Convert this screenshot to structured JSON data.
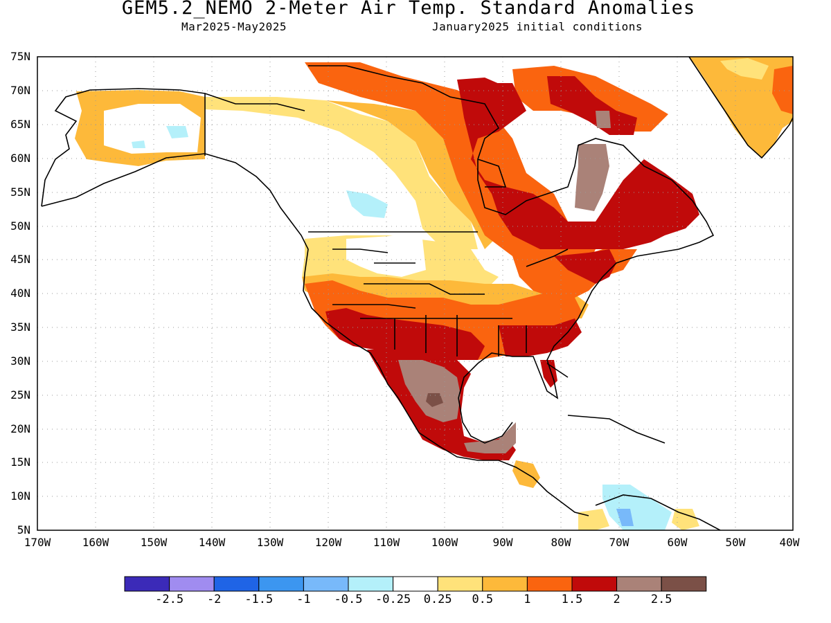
{
  "header": {
    "title": "GEM5.2_NEMO 2-Meter Air Temp. Standard Anomalies",
    "period": "Mar2025-May2025",
    "init": "January2025 initial conditions"
  },
  "axes": {
    "lat_labels": [
      "75N",
      "70N",
      "65N",
      "60N",
      "55N",
      "50N",
      "45N",
      "40N",
      "35N",
      "30N",
      "25N",
      "20N",
      "15N",
      "10N",
      "5N"
    ],
    "lon_labels": [
      "170W",
      "160W",
      "150W",
      "140W",
      "130W",
      "120W",
      "110W",
      "100W",
      "90W",
      "80W",
      "70W",
      "60W",
      "50W",
      "40W"
    ]
  },
  "colorbar": {
    "colors": [
      "#3b2ab8",
      "#a08cf0",
      "#1f64e6",
      "#3c96f0",
      "#78b9fa",
      "#b4f0fa",
      "#ffffff",
      "#ffe27a",
      "#fdb93a",
      "#fa640f",
      "#c00a0a",
      "#aa8278",
      "#7b5047"
    ],
    "labels": [
      "-2.5",
      "-2",
      "-1.5",
      "-1",
      "-0.5",
      "-0.25",
      "0.25",
      "0.5",
      "1",
      "1.5",
      "2",
      "2.5"
    ]
  },
  "map": {
    "projection": "cylindrical",
    "lon_range": [
      -170,
      -40
    ],
    "lat_range": [
      5,
      75
    ],
    "grid": "dotted",
    "variable": "2-meter air temperature standard anomaly"
  }
}
